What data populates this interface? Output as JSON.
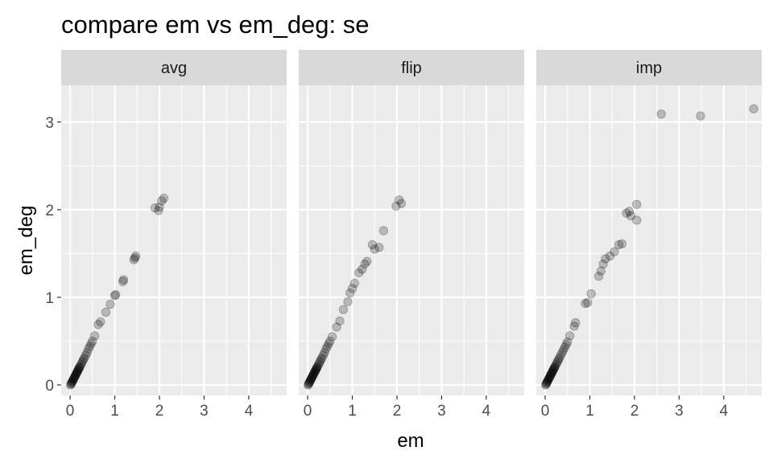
{
  "chart_data": {
    "type": "scatter",
    "title": "compare em vs em_deg: se",
    "xlabel": "em",
    "ylabel": "em_deg",
    "xlim": [
      -0.2,
      4.85
    ],
    "ylim": [
      -0.12,
      3.42
    ],
    "x_ticks": [
      0,
      1,
      2,
      3,
      4
    ],
    "y_ticks": [
      0,
      1,
      2,
      3
    ],
    "grid": true,
    "legend": "none",
    "colors": {
      "panel_background": "#ebebeb",
      "strip_background": "#d9d9d9",
      "grid": "#ffffff",
      "point": "#000000",
      "point_alpha": 0.22
    },
    "facets": [
      {
        "label": "avg",
        "points": [
          [
            0.01,
            0.0
          ],
          [
            0.02,
            0.01
          ],
          [
            0.03,
            0.02
          ],
          [
            0.04,
            0.03
          ],
          [
            0.05,
            0.04
          ],
          [
            0.06,
            0.05
          ],
          [
            0.07,
            0.06
          ],
          [
            0.08,
            0.07
          ],
          [
            0.09,
            0.08
          ],
          [
            0.1,
            0.09
          ],
          [
            0.11,
            0.1
          ],
          [
            0.12,
            0.11
          ],
          [
            0.13,
            0.12
          ],
          [
            0.14,
            0.13
          ],
          [
            0.15,
            0.14
          ],
          [
            0.16,
            0.15
          ],
          [
            0.17,
            0.16
          ],
          [
            0.18,
            0.17
          ],
          [
            0.19,
            0.18
          ],
          [
            0.2,
            0.19
          ],
          [
            0.21,
            0.2
          ],
          [
            0.22,
            0.21
          ],
          [
            0.24,
            0.23
          ],
          [
            0.26,
            0.25
          ],
          [
            0.28,
            0.27
          ],
          [
            0.3,
            0.29
          ],
          [
            0.32,
            0.31
          ],
          [
            0.35,
            0.34
          ],
          [
            0.38,
            0.37
          ],
          [
            0.41,
            0.41
          ],
          [
            0.44,
            0.44
          ],
          [
            0.47,
            0.47
          ],
          [
            0.5,
            0.5
          ],
          [
            0.55,
            0.56
          ],
          [
            0.63,
            0.69
          ],
          [
            0.68,
            0.72
          ],
          [
            0.8,
            0.83
          ],
          [
            0.9,
            0.92
          ],
          [
            1.0,
            1.02
          ],
          [
            1.02,
            1.03
          ],
          [
            1.18,
            1.18
          ],
          [
            1.2,
            1.2
          ],
          [
            1.43,
            1.43
          ],
          [
            1.45,
            1.45
          ],
          [
            1.47,
            1.47
          ],
          [
            1.9,
            2.02
          ],
          [
            1.98,
            1.99
          ],
          [
            2.0,
            2.03
          ],
          [
            2.05,
            2.1
          ],
          [
            2.1,
            2.13
          ]
        ]
      },
      {
        "label": "flip",
        "points": [
          [
            0.01,
            0.0
          ],
          [
            0.02,
            0.01
          ],
          [
            0.03,
            0.02
          ],
          [
            0.04,
            0.03
          ],
          [
            0.05,
            0.04
          ],
          [
            0.06,
            0.05
          ],
          [
            0.07,
            0.06
          ],
          [
            0.08,
            0.07
          ],
          [
            0.09,
            0.08
          ],
          [
            0.1,
            0.09
          ],
          [
            0.11,
            0.1
          ],
          [
            0.12,
            0.11
          ],
          [
            0.13,
            0.12
          ],
          [
            0.14,
            0.13
          ],
          [
            0.15,
            0.14
          ],
          [
            0.16,
            0.15
          ],
          [
            0.17,
            0.16
          ],
          [
            0.18,
            0.17
          ],
          [
            0.19,
            0.18
          ],
          [
            0.2,
            0.19
          ],
          [
            0.21,
            0.2
          ],
          [
            0.22,
            0.21
          ],
          [
            0.24,
            0.23
          ],
          [
            0.26,
            0.25
          ],
          [
            0.28,
            0.27
          ],
          [
            0.3,
            0.29
          ],
          [
            0.32,
            0.31
          ],
          [
            0.35,
            0.34
          ],
          [
            0.38,
            0.37
          ],
          [
            0.41,
            0.41
          ],
          [
            0.44,
            0.44
          ],
          [
            0.47,
            0.47
          ],
          [
            0.5,
            0.5
          ],
          [
            0.55,
            0.55
          ],
          [
            0.65,
            0.66
          ],
          [
            0.72,
            0.73
          ],
          [
            0.8,
            0.86
          ],
          [
            0.9,
            0.95
          ],
          [
            0.95,
            1.05
          ],
          [
            1.0,
            1.1
          ],
          [
            1.05,
            1.16
          ],
          [
            1.15,
            1.28
          ],
          [
            1.22,
            1.32
          ],
          [
            1.28,
            1.38
          ],
          [
            1.33,
            1.41
          ],
          [
            1.45,
            1.6
          ],
          [
            1.5,
            1.55
          ],
          [
            1.6,
            1.57
          ],
          [
            1.7,
            1.76
          ],
          [
            1.98,
            2.04
          ],
          [
            2.05,
            2.11
          ],
          [
            2.1,
            2.07
          ]
        ]
      },
      {
        "label": "imp",
        "points": [
          [
            0.01,
            0.0
          ],
          [
            0.02,
            0.01
          ],
          [
            0.03,
            0.02
          ],
          [
            0.04,
            0.03
          ],
          [
            0.05,
            0.04
          ],
          [
            0.06,
            0.05
          ],
          [
            0.07,
            0.06
          ],
          [
            0.08,
            0.07
          ],
          [
            0.09,
            0.08
          ],
          [
            0.1,
            0.09
          ],
          [
            0.11,
            0.1
          ],
          [
            0.12,
            0.11
          ],
          [
            0.13,
            0.12
          ],
          [
            0.14,
            0.13
          ],
          [
            0.15,
            0.14
          ],
          [
            0.16,
            0.15
          ],
          [
            0.17,
            0.16
          ],
          [
            0.18,
            0.17
          ],
          [
            0.19,
            0.18
          ],
          [
            0.2,
            0.19
          ],
          [
            0.21,
            0.2
          ],
          [
            0.22,
            0.21
          ],
          [
            0.24,
            0.23
          ],
          [
            0.26,
            0.25
          ],
          [
            0.28,
            0.27
          ],
          [
            0.3,
            0.29
          ],
          [
            0.32,
            0.31
          ],
          [
            0.35,
            0.34
          ],
          [
            0.38,
            0.37
          ],
          [
            0.41,
            0.4
          ],
          [
            0.44,
            0.43
          ],
          [
            0.47,
            0.46
          ],
          [
            0.5,
            0.49
          ],
          [
            0.55,
            0.56
          ],
          [
            0.65,
            0.67
          ],
          [
            0.68,
            0.71
          ],
          [
            0.9,
            0.93
          ],
          [
            0.95,
            0.94
          ],
          [
            1.03,
            1.04
          ],
          [
            1.2,
            1.24
          ],
          [
            1.25,
            1.3
          ],
          [
            1.3,
            1.38
          ],
          [
            1.35,
            1.44
          ],
          [
            1.45,
            1.47
          ],
          [
            1.55,
            1.52
          ],
          [
            1.65,
            1.6
          ],
          [
            1.72,
            1.61
          ],
          [
            1.82,
            1.96
          ],
          [
            1.88,
            1.98
          ],
          [
            1.92,
            1.93
          ],
          [
            2.05,
            1.88
          ],
          [
            2.05,
            2.06
          ],
          [
            2.6,
            3.09
          ],
          [
            3.48,
            3.07
          ],
          [
            4.67,
            3.15
          ]
        ]
      }
    ]
  }
}
